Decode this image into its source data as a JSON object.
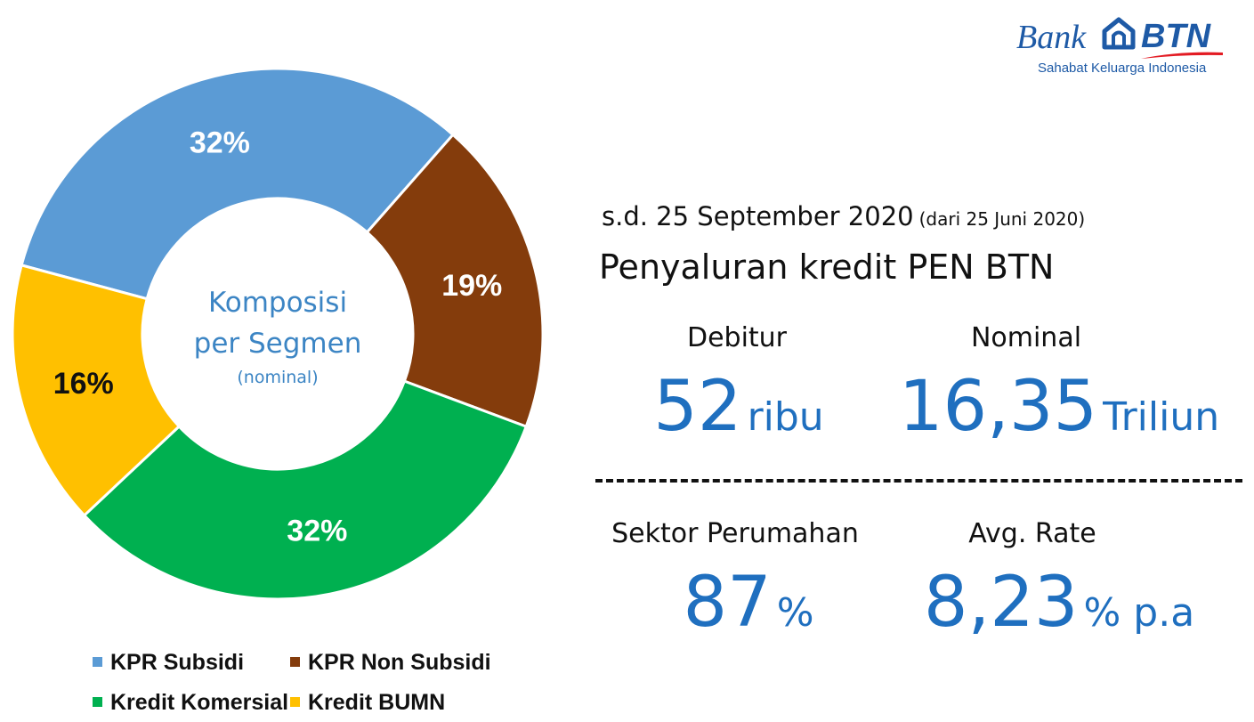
{
  "chart_data": {
    "type": "pie",
    "donut": true,
    "center_text": {
      "line1": "Komposisi",
      "line2": "per Segmen",
      "line3": "(nominal)"
    },
    "slices": [
      {
        "name": "KPR Subsidi",
        "value": 32,
        "label": "32%",
        "color": "#5b9bd5",
        "label_color": "#ffffff"
      },
      {
        "name": "KPR Non Subsidi",
        "value": 19,
        "label": "19%",
        "color": "#843c0c",
        "label_color": "#ffffff"
      },
      {
        "name": "Kredit Komersial",
        "value": 32,
        "label": "32%",
        "color": "#00b050",
        "label_color": "#ffffff"
      },
      {
        "name": "Kredit BUMN",
        "value": 16,
        "label": "16%",
        "color": "#ffc000",
        "label_color": "#111111"
      }
    ],
    "legend": [
      "KPR Subsidi",
      "KPR Non Subsidi",
      "Kredit Komersial",
      "Kredit BUMN"
    ],
    "legend_position": "bottom"
  },
  "logo": {
    "bank": "Bank",
    "btn": "BTN",
    "tagline": "Sahabat Keluarga Indonesia",
    "color": "#1e5aa6",
    "swoosh_color": "#e31b23"
  },
  "header": {
    "date": "s.d. 25 September 2020",
    "date_note": "(dari 25 Juni 2020)",
    "title": "Penyaluran kredit PEN BTN"
  },
  "stats": {
    "debitur": {
      "label": "Debitur",
      "value": "52",
      "unit": "ribu"
    },
    "nominal": {
      "label": "Nominal",
      "value": "16,35",
      "unit": "Triliun"
    },
    "sektor": {
      "label": "Sektor Perumahan",
      "value": "87",
      "unit": "%"
    },
    "rate": {
      "label": "Avg. Rate",
      "value": "8,23",
      "unit": "% p.a"
    }
  },
  "colors": {
    "accent": "#1f6fbf",
    "center_text": "#3c85c4"
  }
}
